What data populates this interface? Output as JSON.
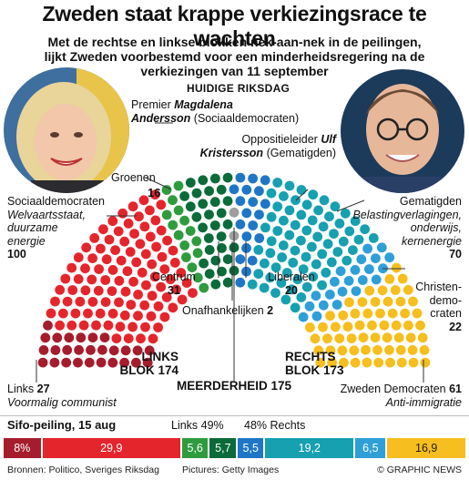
{
  "header": {
    "title": "Zweden staat krappe verkiezingsrace te wachten",
    "subtitle": "Met de rechtse en linkse blokken nek-aan-nek in de peilingen, lijkt Zweden voorbestemd voor een minderheidsregering na de verkiezingen van 11 september"
  },
  "leaders": {
    "left": {
      "prefix": "Premier",
      "name_first": "Magdalena",
      "name_last": "Andersson",
      "party": "(Sociaaldemocraten)"
    },
    "right": {
      "prefix": "Oppositieleider",
      "name_first": "Ulf",
      "name_last": "Kristersson",
      "party": "(Gematigden)"
    }
  },
  "chart_title": "Huidige Riksdag",
  "chart_data": {
    "type": "parliament",
    "title": "Huidige Riksdag",
    "total_seats": 349,
    "parties": [
      {
        "name": "Links",
        "seats": 27,
        "color": "#a51d2d",
        "note": "Voormalig communist"
      },
      {
        "name": "Sociaaldemocraten",
        "seats": 100,
        "color": "#e4262c",
        "note": "Welvaartsstaat, duurzame energie"
      },
      {
        "name": "Groenen",
        "seats": 16,
        "color": "#2e9b3f",
        "note": ""
      },
      {
        "name": "Centrum",
        "seats": 31,
        "color": "#0b6b3a",
        "note": ""
      },
      {
        "name": "Onafhankelijken",
        "seats": 2,
        "color": "#9e9e9e",
        "note": ""
      },
      {
        "name": "Liberalen",
        "seats": 20,
        "color": "#1f76c6",
        "note": ""
      },
      {
        "name": "Gematigden",
        "seats": 70,
        "color": "#16a0b0",
        "note": "Belastingverlagingen, onderwijs, kernenergie"
      },
      {
        "name": "Christen-democraten",
        "seats": 22,
        "color": "#2f9fd8",
        "note": ""
      },
      {
        "name": "Zweden Democraten",
        "seats": 61,
        "color": "#f6be1e",
        "note": "Anti-immigratie"
      }
    ],
    "blocs": {
      "left": {
        "label_1": "LINKS",
        "label_2": "BLOK 174"
      },
      "right": {
        "label_1": "RECHTS",
        "label_2": "BLOK 173"
      },
      "majority": "MEERDERHEID 175"
    }
  },
  "labels": {
    "groenen": {
      "name": "Groenen",
      "value": "16"
    },
    "sociaaldemocraten": {
      "name": "Sociaaldemocraten",
      "note_1": "Welvaartsstaat,",
      "note_2": "duurzame",
      "note_3": "energie",
      "value": "100"
    },
    "centrum": {
      "name": "Centrum",
      "value": "31"
    },
    "liberalen": {
      "name": "Liberalen",
      "value": "20"
    },
    "onafhankelijken": {
      "name": "Onafhankelijken",
      "value": "2"
    },
    "gematigden": {
      "name": "Gematigden",
      "note_1": "Belastingverlagingen,",
      "note_2": "onderwijs,",
      "note_3": "kernenergie",
      "value": "70"
    },
    "christen": {
      "name_1": "Christen-",
      "name_2": "demo-",
      "name_3": "craten",
      "value": "22"
    },
    "links": {
      "name": "Links",
      "value": "27",
      "note": "Voormalig communist"
    },
    "zweden": {
      "name": "Zweden Democraten",
      "value": "61",
      "note": "Anti-immigratie"
    }
  },
  "poll": {
    "title": "Sifo-peiling, 15 aug",
    "left_total": "Links 49%",
    "right_total": "48% Rechts",
    "bars": [
      {
        "label": "8%",
        "value": 8,
        "color": "#a51d2d"
      },
      {
        "label": "29,9",
        "value": 29.9,
        "color": "#e4262c"
      },
      {
        "label": "5,6",
        "value": 5.6,
        "color": "#2e9b3f"
      },
      {
        "label": "5,7",
        "value": 5.7,
        "color": "#0b6b3a"
      },
      {
        "label": "5,5",
        "value": 5.5,
        "color": "#1f76c6"
      },
      {
        "label": "19,2",
        "value": 19.2,
        "color": "#16a0b0"
      },
      {
        "label": "6,5",
        "value": 6.5,
        "color": "#2f9fd8"
      },
      {
        "label": "16,9",
        "value": 16.9,
        "color": "#f6be1e"
      }
    ]
  },
  "footer": {
    "sources": "Bronnen: Politico, Sveriges Riksdag",
    "pictures": "Pictures: Getty Images",
    "credit": "© GRAPHIC NEWS"
  }
}
